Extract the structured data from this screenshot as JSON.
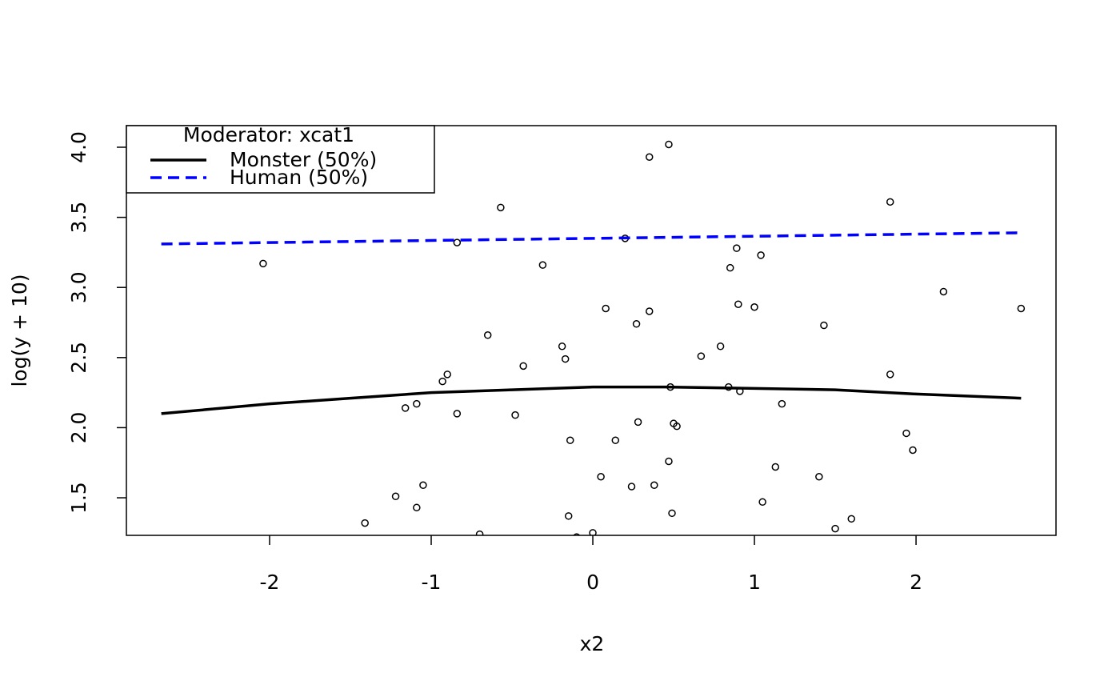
{
  "chart_data": {
    "type": "scatter",
    "xlabel": "x2",
    "ylabel": "log(y + 10)",
    "xlim": [
      -2.886,
      2.866
    ],
    "ylim": [
      1.232,
      4.154
    ],
    "xticks": [
      -2,
      -1,
      0,
      1,
      2
    ],
    "yticks": [
      1.5,
      {
        "value": 2,
        "label": "2.0"
      },
      2.5,
      {
        "value": 3,
        "label": "3.0"
      },
      3.5,
      {
        "value": 4,
        "label": "4.0"
      }
    ],
    "legend_title": "Moderator: xcat1",
    "legend_position": "top-left",
    "points": {
      "color": "#000000",
      "x": [
        -2.04,
        -0.84,
        -0.57,
        -0.31,
        0.2,
        0.35,
        0.47,
        0.89,
        0.85,
        1.04,
        1.84,
        2.17,
        2.65,
        -0.65,
        0.08,
        0.35,
        0.27,
        0.9,
        1.0,
        1.43,
        -0.19,
        -0.17,
        0.67,
        0.79,
        -0.43,
        -0.9,
        -0.93,
        1.84,
        0.48,
        0.84,
        0.91,
        -1.16,
        -1.09,
        -0.84,
        -0.48,
        1.17,
        0.28,
        0.5,
        0.52,
        1.94,
        -0.14,
        0.14,
        1.98,
        0.47,
        1.13,
        0.05,
        1.4,
        -1.05,
        0.24,
        0.38,
        -1.22,
        -1.09,
        1.05,
        -0.15,
        0.49,
        -1.41,
        1.6,
        1.5,
        -0.7,
        0.0,
        -0.1
      ],
      "values": [
        3.17,
        3.32,
        3.57,
        3.16,
        3.35,
        3.93,
        4.02,
        3.28,
        3.14,
        3.23,
        3.61,
        2.97,
        2.85,
        2.66,
        2.85,
        2.83,
        2.74,
        2.88,
        2.86,
        2.73,
        2.58,
        2.49,
        2.51,
        2.58,
        2.44,
        2.38,
        2.33,
        2.38,
        2.29,
        2.29,
        2.26,
        2.14,
        2.17,
        2.1,
        2.09,
        2.17,
        2.04,
        2.03,
        2.01,
        1.96,
        1.91,
        1.91,
        1.84,
        1.76,
        1.72,
        1.65,
        1.65,
        1.59,
        1.58,
        1.59,
        1.51,
        1.43,
        1.47,
        1.37,
        1.39,
        1.32,
        1.35,
        1.28,
        1.24,
        1.25,
        1.22
      ]
    },
    "series": [
      {
        "name": "Monster (50%)",
        "color": "#000000",
        "dash": false,
        "x": [
          -2.67,
          -2,
          -1.5,
          -1,
          -0.5,
          0,
          0.45,
          1,
          1.5,
          2,
          2.65
        ],
        "values": [
          2.1,
          2.17,
          2.21,
          2.25,
          2.27,
          2.29,
          2.29,
          2.28,
          2.27,
          2.24,
          2.21
        ]
      },
      {
        "name": "Human (50%)",
        "color": "#0000ff",
        "dash": true,
        "x": [
          -2.67,
          2.65
        ],
        "values": [
          3.31,
          3.39
        ]
      }
    ]
  }
}
